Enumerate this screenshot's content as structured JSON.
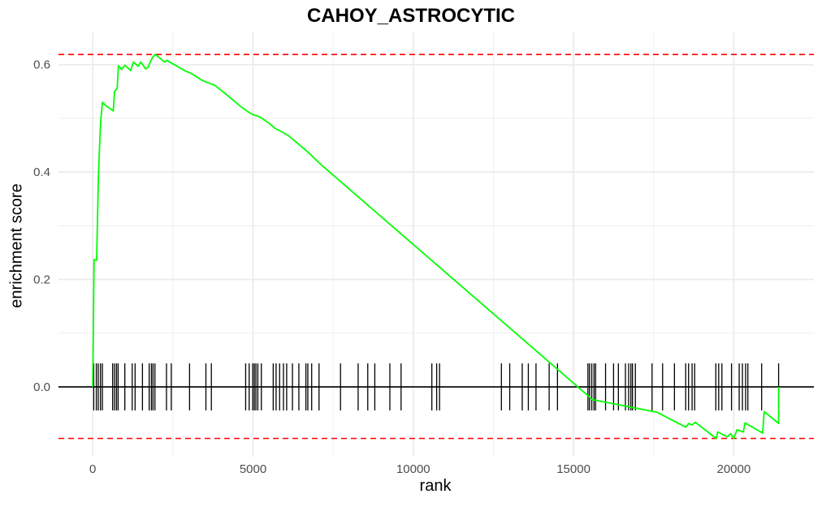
{
  "chart_data": {
    "type": "line",
    "title": "CAHOY_ASTROCYTIC",
    "xlabel": "rank",
    "ylabel": "enrichment score",
    "xlim": [
      -1070,
      22500
    ],
    "ylim": [
      -0.13,
      0.66
    ],
    "x_ticks": [
      0,
      5000,
      10000,
      15000,
      20000
    ],
    "x_tick_labels": [
      "0",
      "5000",
      "10000",
      "15000",
      "20000"
    ],
    "y_ticks": [
      0.0,
      0.2,
      0.4,
      0.6
    ],
    "y_tick_labels": [
      "0.0",
      "0.2",
      "0.4",
      "0.6"
    ],
    "grid": true,
    "colors": {
      "curve": "#00ff00",
      "hits": "#000000",
      "threshold": "#ff0000",
      "grid": "#ebebeb"
    },
    "reference_lines": {
      "zero": 0.0,
      "max_es": 0.619,
      "min_es": -0.096
    },
    "series": [
      {
        "values": [
          [
            0,
            0.0
          ],
          [
            40,
            0.237
          ],
          [
            120,
            0.236
          ],
          [
            150,
            0.316
          ],
          [
            175,
            0.388
          ],
          [
            210,
            0.445
          ],
          [
            245,
            0.493
          ],
          [
            300,
            0.53
          ],
          [
            400,
            0.524
          ],
          [
            640,
            0.514
          ],
          [
            680,
            0.55
          ],
          [
            760,
            0.556
          ],
          [
            800,
            0.598
          ],
          [
            900,
            0.591
          ],
          [
            1000,
            0.599
          ],
          [
            1180,
            0.589
          ],
          [
            1270,
            0.605
          ],
          [
            1420,
            0.597
          ],
          [
            1500,
            0.605
          ],
          [
            1650,
            0.592
          ],
          [
            1720,
            0.595
          ],
          [
            1820,
            0.608
          ],
          [
            1880,
            0.615
          ],
          [
            1950,
            0.619
          ],
          [
            2100,
            0.612
          ],
          [
            2240,
            0.605
          ],
          [
            2300,
            0.608
          ],
          [
            2550,
            0.6
          ],
          [
            2900,
            0.588
          ],
          [
            3060,
            0.584
          ],
          [
            3200,
            0.579
          ],
          [
            3400,
            0.571
          ],
          [
            3600,
            0.566
          ],
          [
            3800,
            0.562
          ],
          [
            4200,
            0.543
          ],
          [
            4600,
            0.523
          ],
          [
            4850,
            0.512
          ],
          [
            5000,
            0.507
          ],
          [
            5200,
            0.503
          ],
          [
            5500,
            0.491
          ],
          [
            5700,
            0.481
          ],
          [
            5900,
            0.475
          ],
          [
            6100,
            0.468
          ],
          [
            6300,
            0.458
          ],
          [
            6700,
            0.438
          ],
          [
            7100,
            0.415
          ],
          [
            15600,
            -0.024
          ],
          [
            17600,
            -0.047
          ],
          [
            18500,
            -0.075
          ],
          [
            18600,
            -0.068
          ],
          [
            18700,
            -0.071
          ],
          [
            18800,
            -0.066
          ],
          [
            19450,
            -0.096
          ],
          [
            19500,
            -0.084
          ],
          [
            19800,
            -0.093
          ],
          [
            19900,
            -0.087
          ],
          [
            20000,
            -0.096
          ],
          [
            20100,
            -0.08
          ],
          [
            20300,
            -0.084
          ],
          [
            20350,
            -0.067
          ],
          [
            20900,
            -0.086
          ],
          [
            20950,
            -0.046
          ],
          [
            21400,
            -0.068
          ],
          [
            21400,
            0.0
          ]
        ]
      }
    ],
    "hits": [
      30,
      110,
      170,
      240,
      300,
      620,
      680,
      740,
      790,
      1000,
      1230,
      1320,
      1550,
      1760,
      1830,
      1880,
      1940,
      2300,
      2450,
      3020,
      3530,
      3700,
      4770,
      4880,
      4990,
      5040,
      5090,
      5150,
      5260,
      5630,
      5720,
      5830,
      5950,
      6050,
      6230,
      6430,
      6650,
      6710,
      6830,
      7060,
      7730,
      8280,
      8580,
      8800,
      9270,
      9620,
      10580,
      10730,
      10820,
      12750,
      13010,
      13400,
      13590,
      13830,
      14240,
      14500,
      15450,
      15500,
      15570,
      15640,
      15690,
      16000,
      16250,
      16400,
      16620,
      16720,
      16790,
      16840,
      16930,
      17450,
      17780,
      18150,
      18500,
      18590,
      18700,
      18780,
      19440,
      19530,
      19630,
      19930,
      20170,
      20270,
      20370,
      20440,
      20870,
      21400
    ]
  }
}
